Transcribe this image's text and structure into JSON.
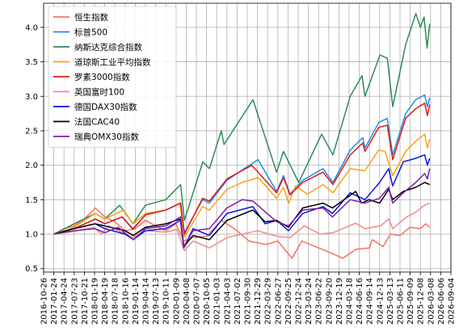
{
  "chart_data": {
    "type": "line",
    "title": "",
    "xlabel": "",
    "ylabel": "",
    "ylim": [
      0.45,
      4.35
    ],
    "grid": true,
    "legend_position": "top-left",
    "y_ticks": [
      "0.5",
      "1.0",
      "1.5",
      "2.0",
      "2.5",
      "3.0",
      "3.5",
      "4.0"
    ],
    "x_ticks": [
      "2016-10-26",
      "2017-01-24",
      "2017-04-24",
      "2017-07-23",
      "2017-10-21",
      "2018-01-19",
      "2018-04-19",
      "2018-07-18",
      "2018-10-16",
      "2019-01-14",
      "2019-04-14",
      "2019-07-13",
      "2019-10-11",
      "2020-01-09",
      "2020-04-08",
      "2020-07-07",
      "2020-10-05",
      "2021-01-03",
      "2021-04-03",
      "2021-07-02",
      "2021-09-30",
      "2021-12-29",
      "2022-03-29",
      "2022-06-27",
      "2022-09-25",
      "2022-12-24",
      "2023-03-24",
      "2023-06-22",
      "2023-09-20",
      "2023-12-19",
      "2024-03-18",
      "2024-06-16",
      "2024-09-14",
      "2024-12-13",
      "2025-03-13",
      "2025-06-11",
      "2025-09-09",
      "2025-12-08",
      "2026-03-08",
      "2026-06-06",
      "2026-09-04"
    ],
    "x_domain": [
      "2016-10-26",
      "2026-09-04"
    ],
    "series": [
      {
        "name": "恒生指数",
        "color": "#f4735f",
        "dates": [
          "2017-01-24",
          "2017-04-24",
          "2017-07-23",
          "2017-10-21",
          "2018-01-26",
          "2018-04-19",
          "2018-07-18",
          "2018-10-16",
          "2019-01-14",
          "2019-04-14",
          "2019-07-13",
          "2019-10-11",
          "2020-01-09",
          "2020-03-19",
          "2020-06-01",
          "2020-10-05",
          "2021-02-15",
          "2021-07-02",
          "2021-10-15",
          "2022-03-15",
          "2022-06-27",
          "2022-10-31",
          "2023-01-26",
          "2023-06-22",
          "2023-10-20",
          "2024-01-22",
          "2024-05-20",
          "2024-09-14",
          "2024-10-08",
          "2025-01-13",
          "2025-03-19",
          "2025-06-11",
          "2025-09-09",
          "2025-12-08",
          "2026-01-25",
          "2026-02-28"
        ],
        "values": [
          1.0,
          1.08,
          1.12,
          1.22,
          1.38,
          1.25,
          1.18,
          1.05,
          1.08,
          1.2,
          1.12,
          1.05,
          1.15,
          0.9,
          0.95,
          0.97,
          1.2,
          1.05,
          0.9,
          0.85,
          0.9,
          0.65,
          0.9,
          0.8,
          0.72,
          0.65,
          0.78,
          0.8,
          0.92,
          0.82,
          1.0,
          0.98,
          1.1,
          1.08,
          1.15,
          1.1
        ]
      },
      {
        "name": "标普500",
        "color": "#1f8fe6",
        "dates": [
          "2017-01-24",
          "2017-07-23",
          "2018-01-26",
          "2018-04-19",
          "2018-09-20",
          "2018-12-24",
          "2019-04-14",
          "2019-10-11",
          "2020-02-19",
          "2020-03-23",
          "2020-08-31",
          "2020-10-30",
          "2021-04-03",
          "2021-09-02",
          "2022-01-03",
          "2022-06-16",
          "2022-08-16",
          "2022-10-12",
          "2023-02-02",
          "2023-07-31",
          "2023-10-27",
          "2024-03-28",
          "2024-07-16",
          "2024-08-05",
          "2024-12-06",
          "2025-02-19",
          "2025-04-08",
          "2025-07-31",
          "2025-10-28",
          "2026-01-15",
          "2026-02-08",
          "2026-02-28"
        ],
        "values": [
          1.0,
          1.08,
          1.22,
          1.15,
          1.25,
          1.08,
          1.28,
          1.35,
          1.45,
          1.02,
          1.5,
          1.45,
          1.78,
          1.95,
          2.08,
          1.62,
          1.85,
          1.58,
          1.78,
          1.95,
          1.75,
          2.22,
          2.4,
          2.25,
          2.62,
          2.68,
          2.15,
          2.75,
          2.95,
          3.02,
          2.85,
          2.98
        ]
      },
      {
        "name": "纳斯达克综合指数",
        "color": "#2e8b57",
        "dates": [
          "2017-01-24",
          "2017-07-23",
          "2018-01-26",
          "2018-04-19",
          "2018-08-29",
          "2018-12-24",
          "2019-04-14",
          "2019-10-11",
          "2020-02-19",
          "2020-03-23",
          "2020-09-02",
          "2020-10-30",
          "2021-02-12",
          "2021-03-08",
          "2021-11-19",
          "2022-06-16",
          "2022-08-16",
          "2022-12-28",
          "2023-07-19",
          "2023-10-27",
          "2024-03-28",
          "2024-07-10",
          "2024-08-05",
          "2024-12-16",
          "2025-02-19",
          "2025-04-08",
          "2025-07-31",
          "2025-10-29",
          "2025-12-08",
          "2026-01-10",
          "2026-02-05",
          "2026-02-28"
        ],
        "values": [
          1.0,
          1.15,
          1.3,
          1.22,
          1.42,
          1.15,
          1.42,
          1.5,
          1.72,
          1.2,
          2.05,
          1.95,
          2.5,
          2.3,
          2.95,
          1.9,
          2.2,
          1.75,
          2.45,
          2.15,
          3.0,
          3.3,
          3.0,
          3.6,
          3.55,
          2.85,
          3.75,
          4.2,
          4.0,
          4.15,
          3.7,
          4.05
        ]
      },
      {
        "name": "道琼斯工业平均指数",
        "color": "#f5a316",
        "dates": [
          "2017-01-24",
          "2017-07-23",
          "2018-01-26",
          "2018-04-19",
          "2018-10-03",
          "2018-12-24",
          "2019-04-14",
          "2019-10-11",
          "2020-02-12",
          "2020-03-23",
          "2020-08-31",
          "2020-10-30",
          "2021-04-03",
          "2021-08-16",
          "2022-01-04",
          "2022-06-16",
          "2022-08-16",
          "2022-09-30",
          "2022-12-01",
          "2023-03-15",
          "2023-07-31",
          "2023-10-27",
          "2024-03-28",
          "2024-08-05",
          "2024-12-04",
          "2025-01-30",
          "2025-04-08",
          "2025-07-31",
          "2025-10-28",
          "2026-01-15",
          "2026-02-08",
          "2026-02-28"
        ],
        "values": [
          1.0,
          1.1,
          1.3,
          1.22,
          1.35,
          1.15,
          1.3,
          1.35,
          1.45,
          0.96,
          1.4,
          1.35,
          1.65,
          1.75,
          1.82,
          1.52,
          1.68,
          1.45,
          1.7,
          1.58,
          1.72,
          1.6,
          1.95,
          1.92,
          2.22,
          2.2,
          1.85,
          2.2,
          2.35,
          2.45,
          2.25,
          2.38
        ]
      },
      {
        "name": "罗素3000指数",
        "color": "#e01b1b",
        "dates": [
          "2017-01-24",
          "2017-07-23",
          "2018-01-26",
          "2018-04-19",
          "2018-09-20",
          "2018-12-24",
          "2019-04-14",
          "2019-10-11",
          "2020-02-19",
          "2020-03-23",
          "2020-08-31",
          "2020-10-30",
          "2021-04-03",
          "2021-11-08",
          "2022-06-16",
          "2022-08-16",
          "2022-10-12",
          "2023-02-02",
          "2023-07-31",
          "2023-10-27",
          "2024-03-28",
          "2024-07-16",
          "2024-08-05",
          "2024-12-06",
          "2025-02-19",
          "2025-04-08",
          "2025-07-31",
          "2025-10-28",
          "2026-01-15",
          "2026-02-08",
          "2026-02-28"
        ],
        "values": [
          1.0,
          1.08,
          1.22,
          1.15,
          1.25,
          1.07,
          1.28,
          1.35,
          1.45,
          1.0,
          1.52,
          1.48,
          1.8,
          2.0,
          1.6,
          1.82,
          1.57,
          1.75,
          1.9,
          1.72,
          2.15,
          2.32,
          2.2,
          2.55,
          2.58,
          2.08,
          2.68,
          2.82,
          2.9,
          2.72,
          2.88
        ]
      },
      {
        "name": "英国富时100",
        "color": "#ef8a8a",
        "dates": [
          "2017-01-24",
          "2017-07-23",
          "2018-01-12",
          "2018-03-23",
          "2018-05-22",
          "2018-12-24",
          "2019-04-14",
          "2019-10-11",
          "2020-01-17",
          "2020-03-23",
          "2020-06-08",
          "2020-10-30",
          "2021-04-03",
          "2021-12-29",
          "2022-06-16",
          "2022-10-12",
          "2023-02-16",
          "2023-07-07",
          "2023-10-27",
          "2024-05-15",
          "2024-08-05",
          "2024-12-20",
          "2025-03-03",
          "2025-04-08",
          "2025-07-31",
          "2025-10-28",
          "2026-01-15",
          "2026-02-28"
        ],
        "values": [
          1.0,
          1.04,
          1.1,
          1.0,
          1.12,
          0.95,
          1.05,
          1.03,
          1.07,
          0.76,
          0.9,
          0.8,
          0.95,
          1.05,
          0.97,
          0.95,
          1.12,
          1.0,
          1.02,
          1.16,
          1.08,
          1.12,
          1.22,
          1.08,
          1.24,
          1.32,
          1.42,
          1.45
        ]
      },
      {
        "name": "德国DAX30指数",
        "color": "#0a14e6",
        "dates": [
          "2017-01-24",
          "2017-07-23",
          "2018-01-23",
          "2018-04-19",
          "2018-10-16",
          "2018-12-27",
          "2019-04-14",
          "2019-10-11",
          "2020-02-17",
          "2020-03-18",
          "2020-06-08",
          "2020-10-30",
          "2021-04-03",
          "2021-11-18",
          "2022-03-07",
          "2022-06-16",
          "2022-09-29",
          "2023-02-02",
          "2023-07-31",
          "2023-10-23",
          "2024-03-28",
          "2024-08-05",
          "2024-12-13",
          "2025-03-03",
          "2025-04-07",
          "2025-07-10",
          "2025-10-28",
          "2026-01-15",
          "2026-02-08",
          "2026-02-28"
        ],
        "values": [
          1.0,
          1.08,
          1.15,
          1.08,
          1.0,
          0.92,
          1.05,
          1.08,
          1.2,
          0.8,
          1.08,
          0.98,
          1.3,
          1.4,
          1.15,
          1.2,
          1.05,
          1.3,
          1.4,
          1.3,
          1.6,
          1.5,
          1.75,
          1.95,
          1.7,
          2.05,
          2.1,
          2.15,
          2.0,
          2.1
        ]
      },
      {
        "name": "法国CAC40",
        "color": "#000000",
        "dates": [
          "2017-01-24",
          "2017-07-23",
          "2018-01-23",
          "2018-04-19",
          "2018-10-16",
          "2018-12-27",
          "2019-04-14",
          "2019-10-11",
          "2020-02-19",
          "2020-03-18",
          "2020-06-08",
          "2020-10-30",
          "2021-04-03",
          "2021-11-18",
          "2022-03-07",
          "2022-06-16",
          "2022-09-29",
          "2023-02-02",
          "2023-07-31",
          "2023-10-23",
          "2024-05-15",
          "2024-07-05",
          "2024-09-10",
          "2024-12-13",
          "2025-03-03",
          "2025-04-07",
          "2025-07-10",
          "2025-10-28",
          "2026-01-15",
          "2026-02-28"
        ],
        "values": [
          1.0,
          1.08,
          1.15,
          1.12,
          1.05,
          0.98,
          1.1,
          1.15,
          1.22,
          0.82,
          0.98,
          0.92,
          1.2,
          1.35,
          1.18,
          1.2,
          1.1,
          1.38,
          1.45,
          1.38,
          1.62,
          1.45,
          1.5,
          1.45,
          1.65,
          1.5,
          1.62,
          1.68,
          1.75,
          1.72
        ]
      },
      {
        "name": "瑞典OMX30指数",
        "color": "#7a1fa0",
        "dates": [
          "2017-01-24",
          "2017-07-23",
          "2018-01-23",
          "2018-04-19",
          "2018-08-15",
          "2018-12-27",
          "2019-04-14",
          "2019-10-11",
          "2020-02-19",
          "2020-03-18",
          "2020-06-08",
          "2020-10-30",
          "2021-04-03",
          "2021-08-16",
          "2021-11-18",
          "2022-06-16",
          "2022-09-29",
          "2023-02-02",
          "2023-07-31",
          "2023-10-23",
          "2024-03-28",
          "2024-08-05",
          "2024-12-13",
          "2025-03-03",
          "2025-04-07",
          "2025-07-10",
          "2025-10-28",
          "2026-01-15",
          "2026-02-08",
          "2026-02-28"
        ],
        "values": [
          1.0,
          1.05,
          1.08,
          1.02,
          1.1,
          0.92,
          1.08,
          1.12,
          1.25,
          0.82,
          1.05,
          1.08,
          1.38,
          1.5,
          1.48,
          1.18,
          1.12,
          1.35,
          1.38,
          1.25,
          1.5,
          1.45,
          1.52,
          1.68,
          1.45,
          1.6,
          1.75,
          1.88,
          1.8,
          1.95
        ]
      }
    ]
  }
}
